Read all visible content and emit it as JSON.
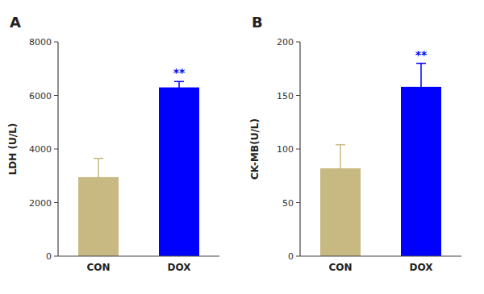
{
  "chart_data": [
    {
      "type": "bar",
      "title": "A",
      "categories": [
        "CON",
        "DOX"
      ],
      "values": [
        2950,
        6300
      ],
      "errors": [
        700,
        220
      ],
      "colors": [
        "#C8B882",
        "#0000FF"
      ],
      "ylabel": "LDH (U/L)",
      "ylim": [
        0,
        8000
      ],
      "yticks": [
        0,
        2000,
        4000,
        6000,
        8000
      ],
      "grid": false,
      "annotations": [
        {
          "category": "DOX",
          "text": "**",
          "color": "#0000FF"
        }
      ]
    },
    {
      "type": "bar",
      "title": "B",
      "categories": [
        "CON",
        "DOX"
      ],
      "values": [
        82,
        158
      ],
      "errors": [
        22,
        22
      ],
      "colors": [
        "#C8B882",
        "#0000FF"
      ],
      "ylabel": "CK-MB(U/L)",
      "ylim": [
        0,
        200
      ],
      "yticks": [
        0,
        50,
        100,
        150,
        200
      ],
      "grid": false,
      "annotations": [
        {
          "category": "DOX",
          "text": "**",
          "color": "#0000FF"
        }
      ]
    }
  ]
}
